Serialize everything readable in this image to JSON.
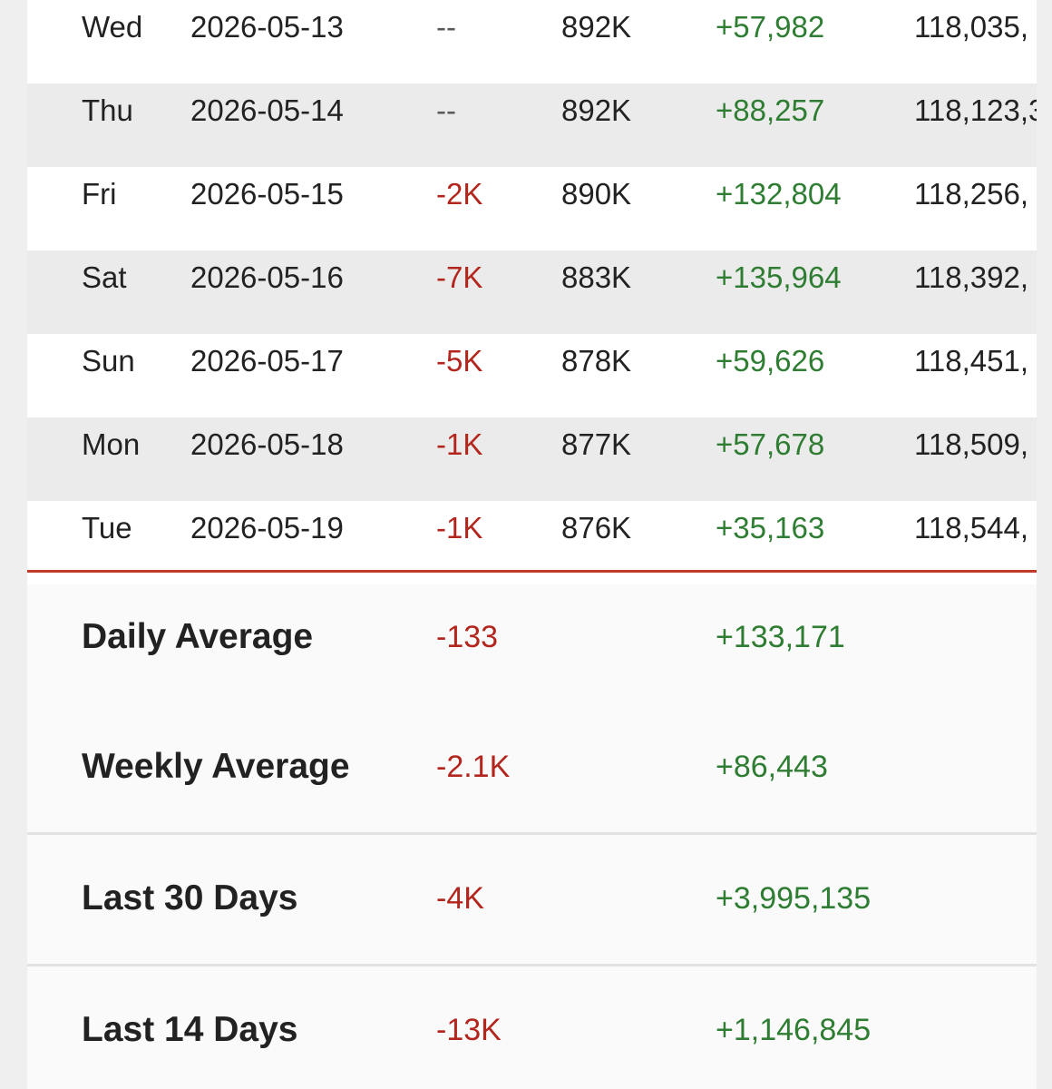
{
  "rows": [
    {
      "day": "Wed",
      "date": "2026-05-13",
      "change": "--",
      "total": "892K",
      "gain": "+57,982",
      "cumulative": "118,035,"
    },
    {
      "day": "Thu",
      "date": "2026-05-14",
      "change": "--",
      "total": "892K",
      "gain": "+88,257",
      "cumulative": "118,123,3"
    },
    {
      "day": "Fri",
      "date": "2026-05-15",
      "change": "-2K",
      "total": "890K",
      "gain": "+132,804",
      "cumulative": "118,256,"
    },
    {
      "day": "Sat",
      "date": "2026-05-16",
      "change": "-7K",
      "total": "883K",
      "gain": "+135,964",
      "cumulative": "118,392,"
    },
    {
      "day": "Sun",
      "date": "2026-05-17",
      "change": "-5K",
      "total": "878K",
      "gain": "+59,626",
      "cumulative": "118,451,"
    },
    {
      "day": "Mon",
      "date": "2026-05-18",
      "change": "-1K",
      "total": "877K",
      "gain": "+57,678",
      "cumulative": "118,509,"
    },
    {
      "day": "Tue",
      "date": "2026-05-19",
      "change": "-1K",
      "total": "876K",
      "gain": "+35,163",
      "cumulative": "118,544,"
    }
  ],
  "summary": [
    {
      "label": "Daily Average",
      "change": "-133",
      "gain": "+133,171"
    },
    {
      "label": "Weekly Average",
      "change": "-2.1K",
      "gain": "+86,443"
    },
    {
      "label": "Last 30 Days",
      "change": "-4K",
      "gain": "+3,995,135"
    },
    {
      "label": "Last 14 Days",
      "change": "-13K",
      "gain": "+1,146,845"
    }
  ],
  "colors": {
    "negative": "#b3261e",
    "positive": "#2e7d32",
    "divider": "#c0392b",
    "row_alt": "#ebebeb"
  }
}
